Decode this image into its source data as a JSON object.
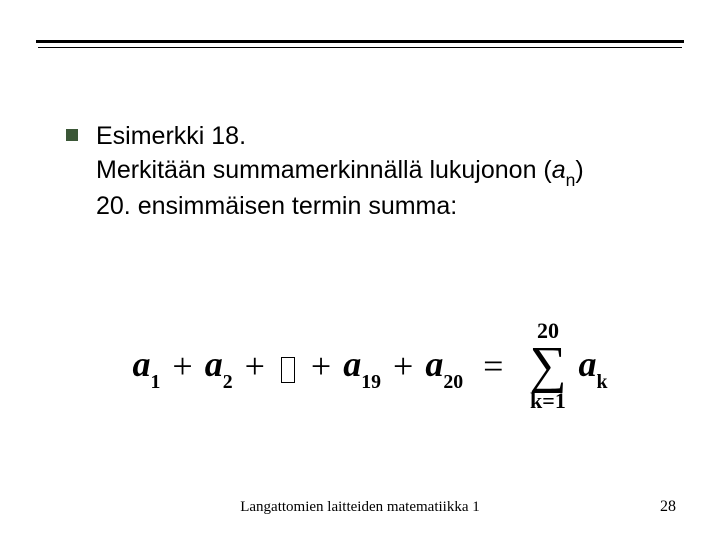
{
  "colors": {
    "bullet": "#3b5737",
    "rule": "#000000",
    "text": "#000000",
    "background": "#ffffff"
  },
  "heading": {
    "title": "Esimerkki 18.",
    "line2_part1": "Merkitään summamerkinnällä lukujonon (",
    "line2_seq_var": "a",
    "line2_seq_sub": "n",
    "line2_part2": ")",
    "line3": "20. ensimmäisen termin summa:"
  },
  "equation": {
    "a": "a",
    "sub1": "1",
    "sub2": "2",
    "sub19": "19",
    "sub20": "20",
    "plus": "+",
    "equals": "=",
    "sum_upper": "20",
    "sum_lower_var": "k",
    "sum_lower_eq": "=1",
    "sum_var": "a",
    "sum_var_sub": "k"
  },
  "footer": {
    "text": "Langattomien laitteiden matematiikka 1",
    "page": "28"
  }
}
